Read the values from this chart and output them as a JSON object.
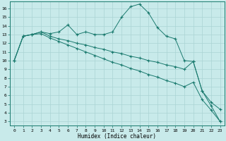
{
  "xlabel": "Humidex (Indice chaleur)",
  "line_color": "#1a7a6e",
  "bg_color": "#c8eaea",
  "grid_color": "#aad4d4",
  "xlim": [
    -0.5,
    23.5
  ],
  "ylim": [
    2.5,
    16.8
  ],
  "yticks": [
    3,
    4,
    5,
    6,
    7,
    8,
    9,
    10,
    11,
    12,
    13,
    14,
    15,
    16
  ],
  "xticks": [
    0,
    1,
    2,
    3,
    4,
    5,
    6,
    7,
    8,
    9,
    10,
    11,
    12,
    13,
    14,
    15,
    16,
    17,
    18,
    19,
    20,
    21,
    22,
    23
  ],
  "line1_x": [
    0,
    1,
    2,
    3,
    4,
    5,
    6,
    7,
    8,
    9,
    10,
    11,
    12,
    13,
    14,
    15,
    16,
    17,
    18,
    19,
    20,
    21,
    22,
    23
  ],
  "line1_y": [
    10.0,
    12.8,
    13.0,
    13.3,
    13.1,
    13.3,
    14.1,
    13.0,
    13.3,
    13.0,
    13.0,
    13.3,
    15.0,
    16.2,
    16.5,
    15.5,
    13.8,
    12.8,
    12.5,
    10.0,
    9.9,
    6.5,
    5.2,
    4.4
  ],
  "line2_x": [
    0,
    1,
    2,
    3,
    4,
    5,
    6,
    7,
    8,
    9,
    10,
    11,
    12,
    13,
    14,
    15,
    16,
    17,
    18,
    19,
    20,
    21,
    22,
    23
  ],
  "line2_y": [
    10.0,
    12.8,
    13.0,
    13.3,
    12.8,
    12.5,
    12.3,
    12.0,
    11.8,
    11.5,
    11.3,
    11.0,
    10.8,
    10.5,
    10.3,
    10.0,
    9.8,
    9.5,
    9.3,
    9.0,
    9.9,
    6.5,
    4.8,
    3.0
  ],
  "line3_x": [
    0,
    1,
    2,
    3,
    4,
    5,
    6,
    7,
    8,
    9,
    10,
    11,
    12,
    13,
    14,
    15,
    16,
    17,
    18,
    19,
    20,
    21,
    22,
    23
  ],
  "line3_y": [
    10.0,
    12.8,
    13.0,
    13.1,
    12.6,
    12.2,
    11.8,
    11.4,
    11.0,
    10.6,
    10.2,
    9.8,
    9.5,
    9.1,
    8.8,
    8.4,
    8.1,
    7.7,
    7.4,
    7.0,
    7.5,
    5.5,
    4.3,
    3.0
  ]
}
